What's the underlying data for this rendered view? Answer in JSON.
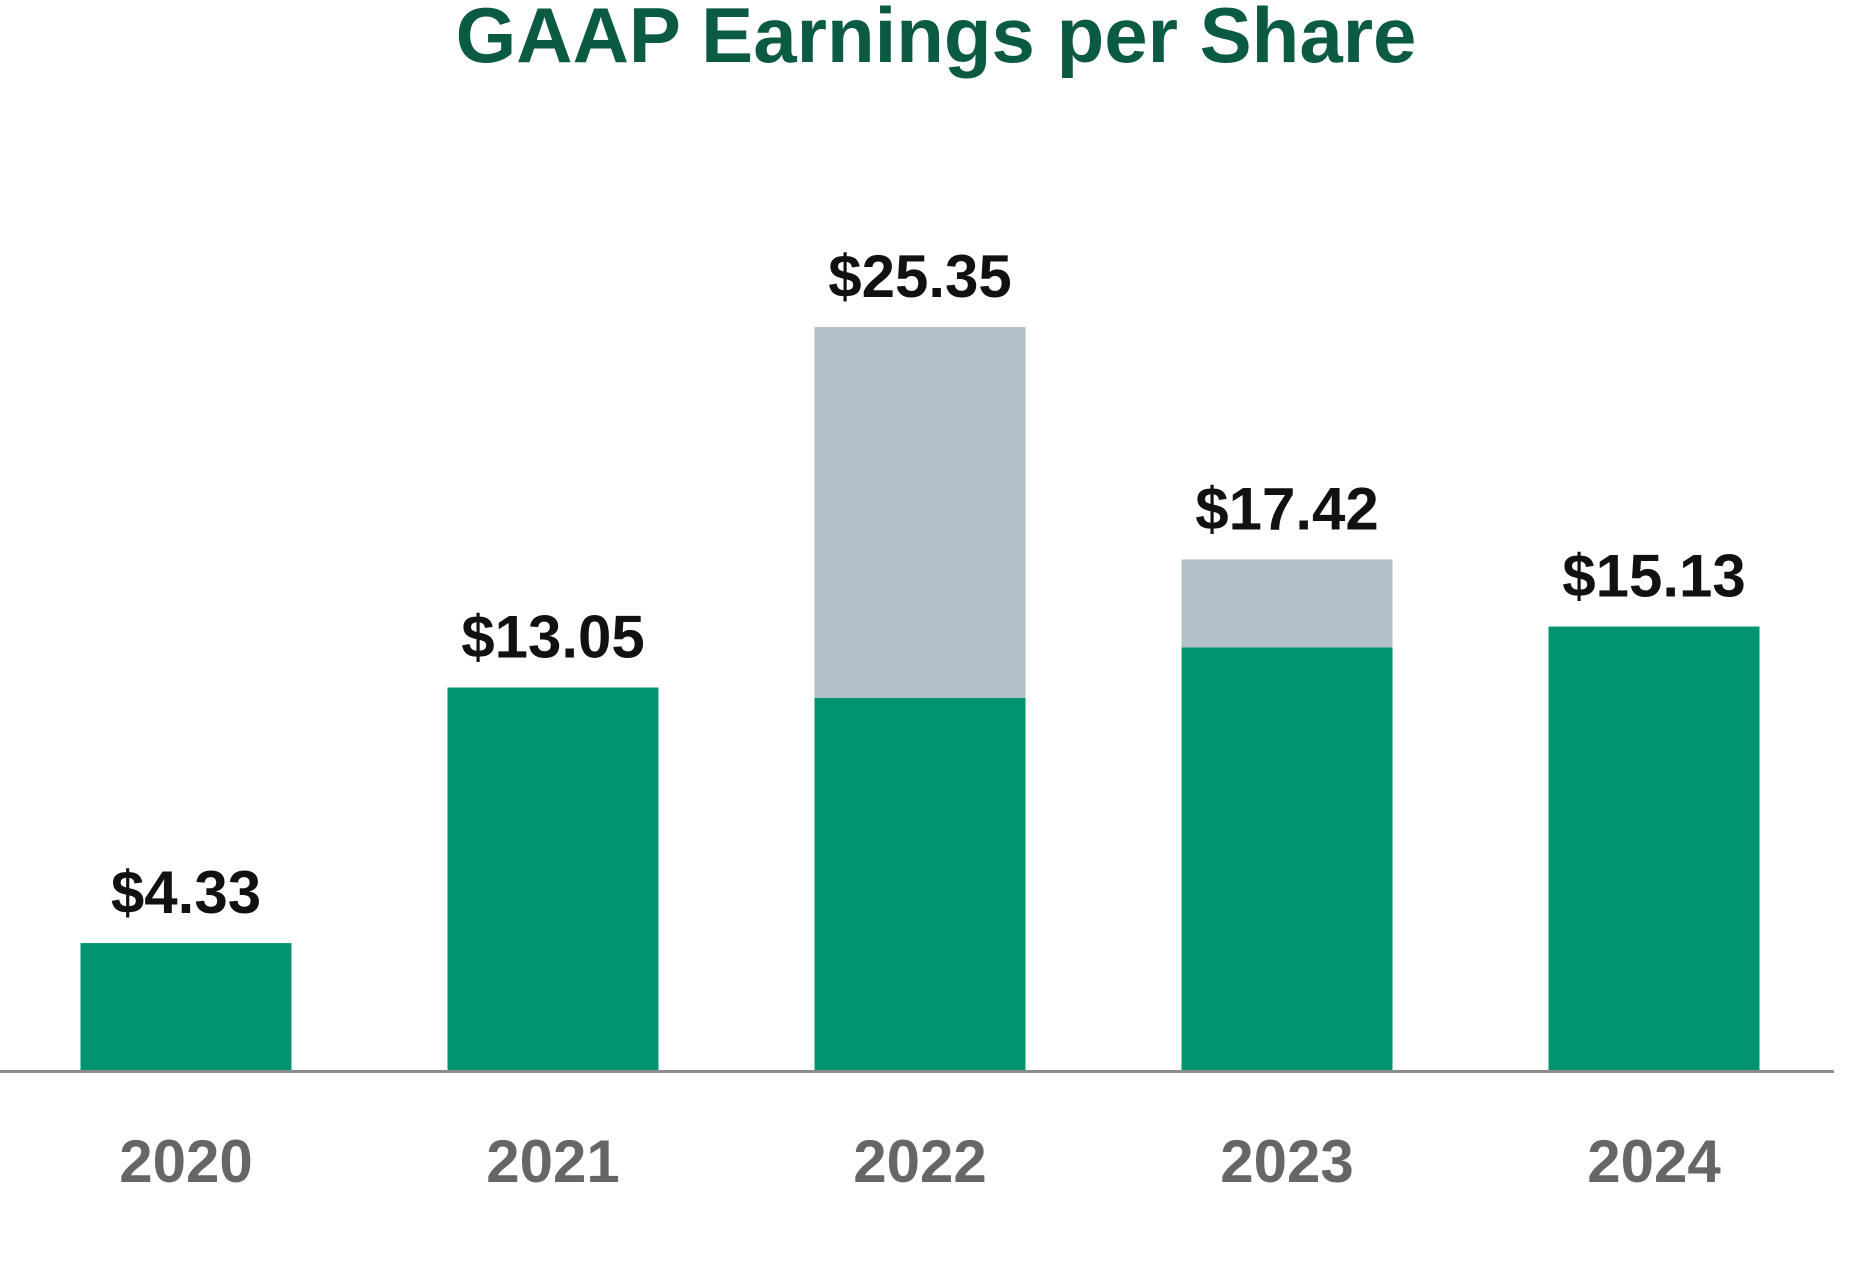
{
  "chart_data": {
    "type": "bar",
    "title": "GAAP Earnings per Share",
    "xlabel": "",
    "ylabel": "",
    "categories": [
      "2020",
      "2021",
      "2022",
      "2023",
      "2024"
    ],
    "series": [
      {
        "values": [
          4.33,
          13.05,
          12.7,
          14.42,
          15.13
        ]
      },
      {
        "values": [
          0,
          0,
          12.65,
          3.0,
          0
        ]
      }
    ],
    "totals": [
      4.33,
      13.05,
      25.35,
      17.42,
      15.13
    ],
    "data_labels": [
      "$4.33",
      "$13.05",
      "$25.35",
      "$17.42",
      "$15.13"
    ],
    "ylim": [
      0,
      25.35
    ],
    "grid": false,
    "legend": "none",
    "colors": {
      "title": "#0b5a44",
      "primary_bar": "#029470",
      "secondary_bar": "#b3c0c7",
      "value_label": "#111111",
      "tick_label": "#666666",
      "axis_line": "#8c8c8c"
    }
  }
}
